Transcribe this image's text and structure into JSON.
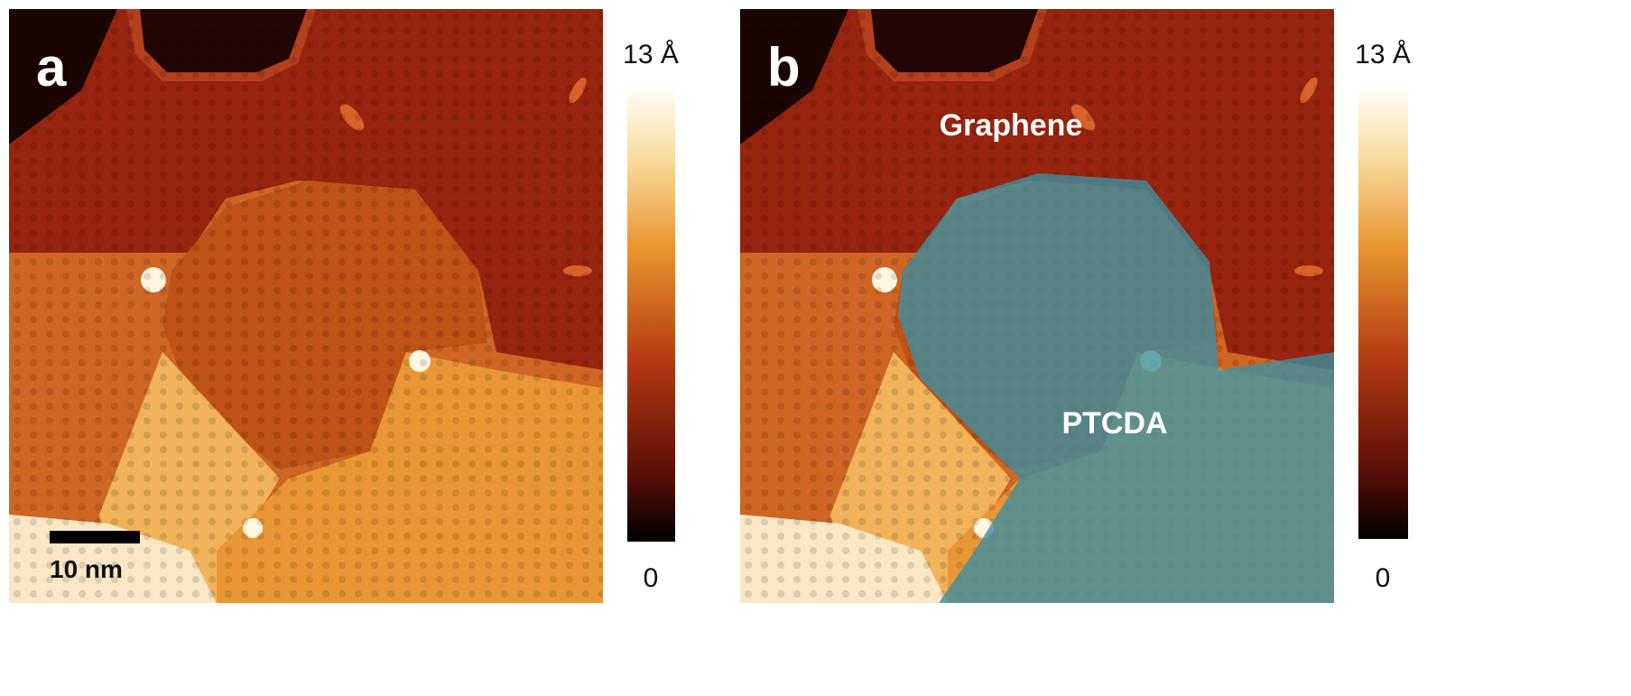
{
  "panels": [
    {
      "label": "a",
      "scale_bar": "10 nm",
      "colorbar": {
        "max": "13 Å",
        "min": "0"
      }
    },
    {
      "label": "b",
      "annotations": [
        "Graphene",
        "PTCDA"
      ],
      "colorbar": {
        "max": "13 Å",
        "min": "0"
      }
    }
  ]
}
